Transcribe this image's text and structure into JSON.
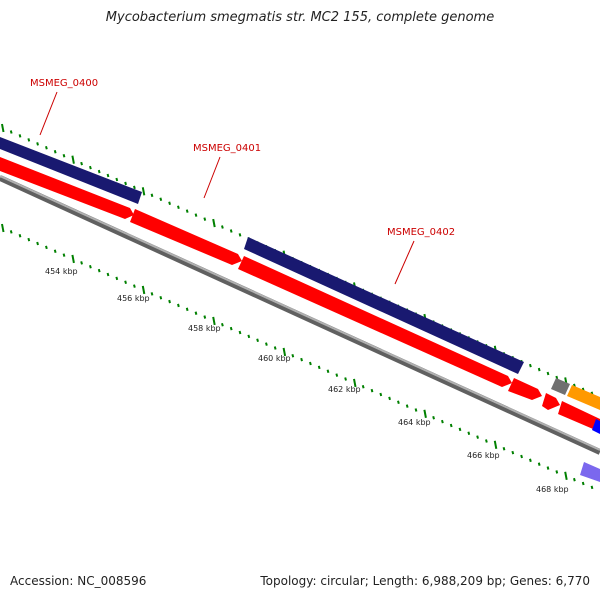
{
  "title": "Mycobacterium smegmatis str. MC2 155, complete genome",
  "footer": {
    "accession": "Accession: NC_008596",
    "summary": "Topology: circular; Length: 6,988,209 bp; Genes: 6,770"
  },
  "gene_labels": [
    "MSMEG_0400",
    "MSMEG_0401",
    "MSMEG_0402"
  ],
  "tick_labels": [
    "454 kbp",
    "456 kbp",
    "458 kbp",
    "460 kbp",
    "462 kbp",
    "464 kbp",
    "466 kbp",
    "468 kbp"
  ],
  "colors": {
    "forward_gene": "#191970",
    "reverse_gene": "#ff0000",
    "backbone": "#808080",
    "ticks": "#008000",
    "label": "#cc0000",
    "orange_feature": "#ff9900",
    "blue_feature": "#0000ff",
    "purple_feature": "#7b68ee",
    "gray_feature": "#707070"
  }
}
